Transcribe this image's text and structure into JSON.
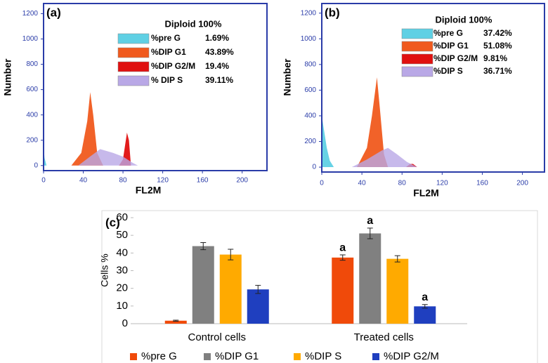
{
  "chart_data": [
    {
      "type": "area",
      "panel": "(a)",
      "ylabel": "Number",
      "xlabel": "FL2M",
      "annotation": "Diploid 100%",
      "xlim": [
        0,
        225
      ],
      "xticks": [
        0,
        40,
        80,
        120,
        160,
        200
      ],
      "ylim": [
        -40,
        1280
      ],
      "yticks": [
        0,
        200,
        400,
        600,
        800,
        1000,
        1200
      ],
      "series": [
        {
          "name": "%pre G",
          "label": "1.69%",
          "color": "#5fd0e4",
          "x": [
            0,
            0,
            1,
            3
          ],
          "values": [
            0,
            150,
            60,
            0
          ]
        },
        {
          "name": "%DIP G1",
          "label": "43.89%",
          "color": "#f05a1e",
          "x": [
            28,
            38,
            44,
            47,
            50,
            54,
            60
          ],
          "values": [
            0,
            100,
            350,
            580,
            400,
            100,
            0
          ]
        },
        {
          "name": "%DIP G2/M",
          "label": "19.4%",
          "color": "#e01010",
          "x": [
            76,
            80,
            84,
            86,
            88
          ],
          "values": [
            0,
            50,
            260,
            200,
            0
          ]
        },
        {
          "name": "% DIP S",
          "label": "39.11%",
          "color": "#b9a8e6",
          "x": [
            35,
            45,
            57,
            70,
            80,
            90,
            95
          ],
          "values": [
            0,
            60,
            130,
            100,
            70,
            20,
            0
          ]
        }
      ]
    },
    {
      "type": "area",
      "panel": "(b)",
      "ylabel": "Number",
      "xlabel": "FL2M",
      "annotation": "Diploid 100%",
      "xlim": [
        0,
        222
      ],
      "xticks": [
        0,
        40,
        80,
        120,
        160,
        200
      ],
      "ylim": [
        -38,
        1275
      ],
      "yticks": [
        0,
        200,
        400,
        600,
        800,
        1000,
        1200
      ],
      "series": [
        {
          "name": "%pre G",
          "label": "37.42%",
          "color": "#5fd0e4",
          "x": [
            0,
            0,
            2,
            5,
            8,
            12
          ],
          "values": [
            0,
            400,
            300,
            150,
            50,
            0
          ]
        },
        {
          "name": "%DIP G1",
          "label": "51.08%",
          "color": "#f05a1e",
          "x": [
            35,
            45,
            50,
            55,
            58,
            62,
            66
          ],
          "values": [
            0,
            150,
            400,
            700,
            450,
            100,
            0
          ]
        },
        {
          "name": "%DIP G2/M",
          "label": "9.81%",
          "color": "#e01010",
          "x": [
            84,
            88,
            91,
            95
          ],
          "values": [
            0,
            25,
            25,
            0
          ]
        },
        {
          "name": "%DIP S",
          "label": "36.71%",
          "color": "#b9a8e6",
          "x": [
            30,
            45,
            60,
            66,
            75,
            85,
            95
          ],
          "values": [
            0,
            60,
            130,
            150,
            100,
            40,
            0
          ]
        }
      ]
    },
    {
      "type": "bar",
      "panel": "(c)",
      "ylabel": "Cells %",
      "categories": [
        "Control cells",
        "Treated cells"
      ],
      "ylim": [
        0,
        60
      ],
      "yticks": [
        0,
        10,
        20,
        30,
        40,
        50,
        60
      ],
      "series": [
        {
          "name": "%pre G",
          "color": "#f04a0a",
          "values": [
            1.69,
            37.42
          ],
          "errors": [
            0.3,
            1.5
          ],
          "labels": [
            null,
            "a"
          ]
        },
        {
          "name": "%DIP G1",
          "color": "#808080",
          "values": [
            43.89,
            51.08
          ],
          "errors": [
            2,
            3
          ],
          "labels": [
            null,
            "a"
          ]
        },
        {
          "name": "%DIP S",
          "color": "#ffaa00",
          "values": [
            39.11,
            36.71
          ],
          "errors": [
            3,
            1.8
          ],
          "labels": [
            null,
            null
          ]
        },
        {
          "name": "%DIP G2/M",
          "color": "#1f3fbf",
          "values": [
            19.4,
            9.81
          ],
          "errors": [
            2.3,
            1
          ],
          "labels": [
            null,
            "a"
          ]
        }
      ]
    }
  ]
}
